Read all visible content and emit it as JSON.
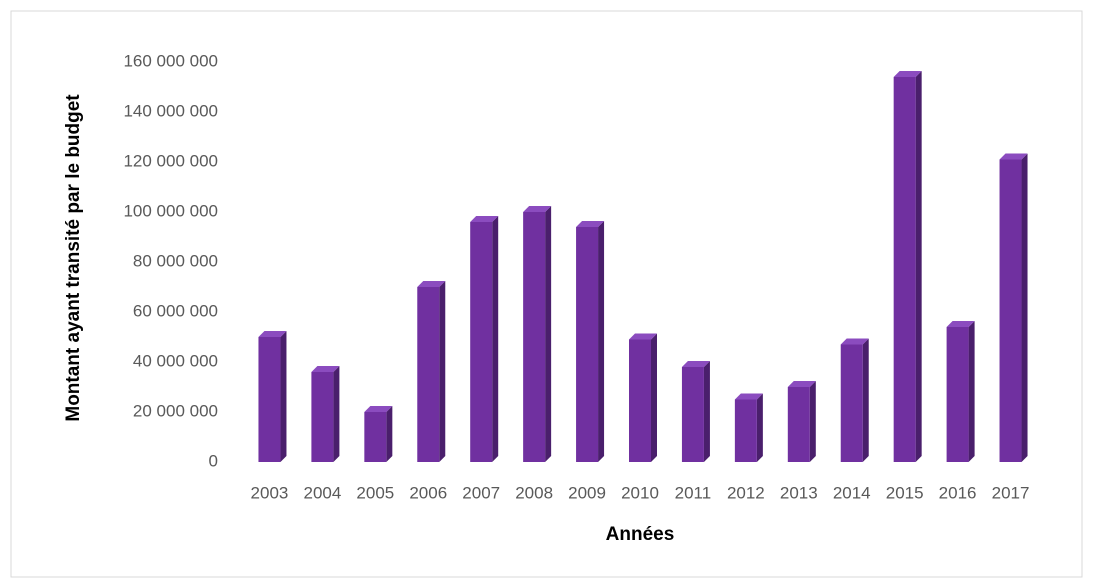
{
  "chart_data": {
    "type": "bar",
    "categories": [
      "2003",
      "2004",
      "2005",
      "2006",
      "2007",
      "2008",
      "2009",
      "2010",
      "2011",
      "2012",
      "2013",
      "2014",
      "2015",
      "2016",
      "2017"
    ],
    "values": [
      50000000,
      36000000,
      20000000,
      70000000,
      96000000,
      100000000,
      94000000,
      49000000,
      38000000,
      25000000,
      30000000,
      47000000,
      154000000,
      54000000,
      121000000
    ],
    "color": "#7030a0",
    "x_label": "Années",
    "y_label": "Montant ayant transité par le budget",
    "ylim": [
      0,
      160000000
    ],
    "yticks": [
      0,
      {
        "value": 20000000,
        "label": "20 000 000"
      },
      {
        "value": 40000000,
        "label": "40 000 000"
      },
      {
        "value": 60000000,
        "label": "60 000 000"
      },
      {
        "value": 80000000,
        "label": "80 000 000"
      },
      {
        "value": 100000000,
        "label": "100 000 000"
      },
      {
        "value": 120000000,
        "label": "120 000 000"
      },
      {
        "value": 140000000,
        "label": "140 000 000"
      },
      {
        "value": 160000000,
        "label": "160 000 000"
      }
    ],
    "grid": false
  }
}
